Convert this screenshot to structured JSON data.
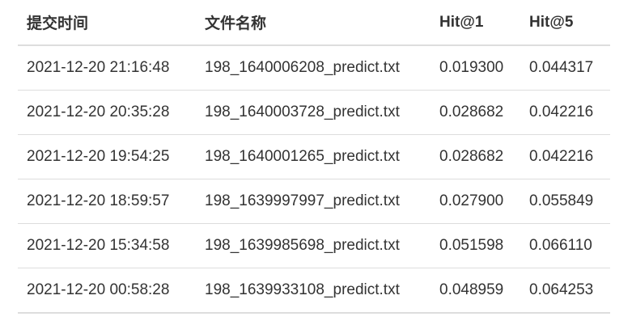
{
  "table": {
    "columns": [
      "提交时间",
      "文件名称",
      "Hit@1",
      "Hit@5"
    ],
    "rows": [
      {
        "time": "2021-12-20 21:16:48",
        "file": "198_1640006208_predict.txt",
        "hit1": "0.019300",
        "hit5": "0.044317"
      },
      {
        "time": "2021-12-20 20:35:28",
        "file": "198_1640003728_predict.txt",
        "hit1": "0.028682",
        "hit5": "0.042216"
      },
      {
        "time": "2021-12-20 19:54:25",
        "file": "198_1640001265_predict.txt",
        "hit1": "0.028682",
        "hit5": "0.042216"
      },
      {
        "time": "2021-12-20 18:59:57",
        "file": "198_1639997997_predict.txt",
        "hit1": "0.027900",
        "hit5": "0.055849"
      },
      {
        "time": "2021-12-20 15:34:58",
        "file": "198_1639985698_predict.txt",
        "hit1": "0.051598",
        "hit5": "0.066110"
      },
      {
        "time": "2021-12-20 00:58:28",
        "file": "198_1639933108_predict.txt",
        "hit1": "0.048959",
        "hit5": "0.064253"
      }
    ]
  }
}
